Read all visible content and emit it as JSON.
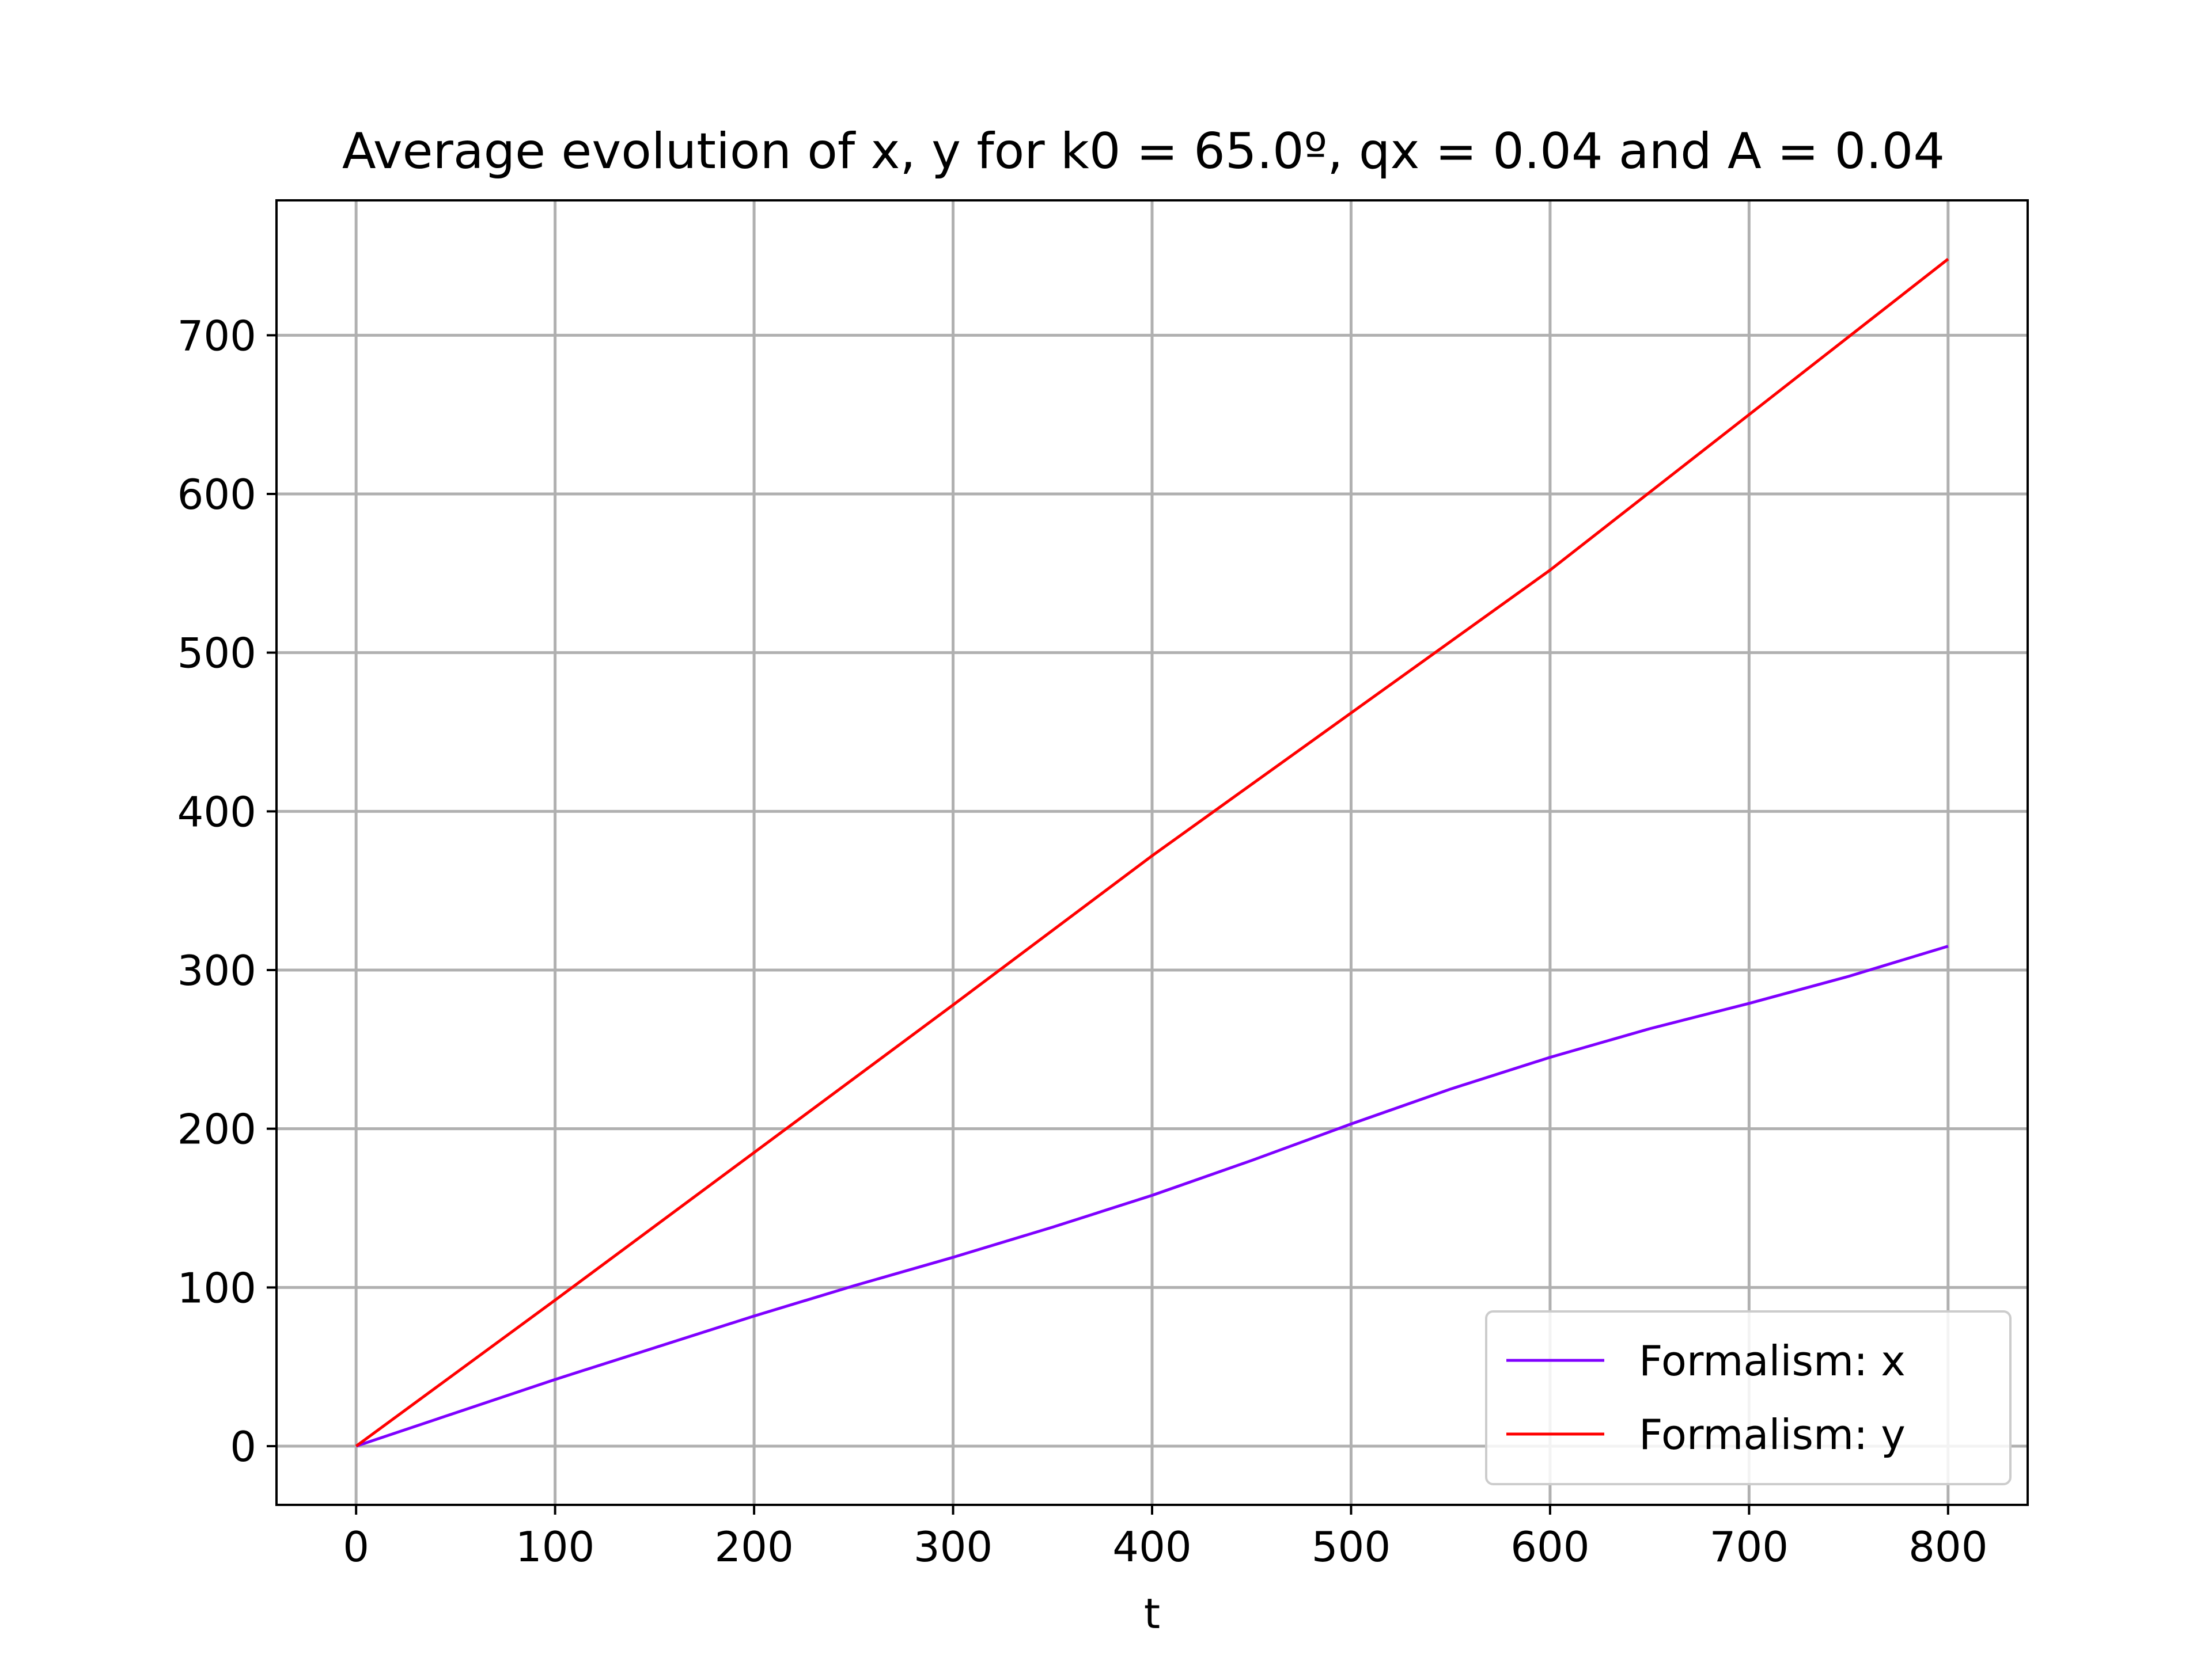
{
  "chart_data": {
    "type": "line",
    "title": "Average evolution of x, y for k0 = 65.0º, qx = 0.04 and A = 0.04",
    "xlabel": "t",
    "ylabel": "",
    "xlim": [
      -40,
      840
    ],
    "ylim": [
      -37,
      785
    ],
    "xticks": [
      0,
      100,
      200,
      300,
      400,
      500,
      600,
      700,
      800
    ],
    "yticks": [
      0,
      100,
      200,
      300,
      400,
      500,
      600,
      700
    ],
    "grid": true,
    "legend_position": "lower right",
    "series": [
      {
        "name": "Formalism:  x",
        "color": "#7f00ff",
        "x": [
          0,
          50,
          100,
          150,
          200,
          250,
          300,
          350,
          400,
          450,
          500,
          550,
          600,
          650,
          700,
          750,
          800
        ],
        "y": [
          0,
          21,
          42,
          62,
          82,
          101,
          119,
          138,
          158,
          180,
          203,
          225,
          245,
          263,
          279,
          296,
          315
        ]
      },
      {
        "name": "Formalism:  y",
        "color": "#ff0000",
        "x": [
          0,
          100,
          200,
          300,
          400,
          500,
          600,
          700,
          800
        ],
        "y": [
          0,
          92,
          185,
          278,
          372,
          462,
          552,
          650,
          748
        ]
      }
    ]
  }
}
